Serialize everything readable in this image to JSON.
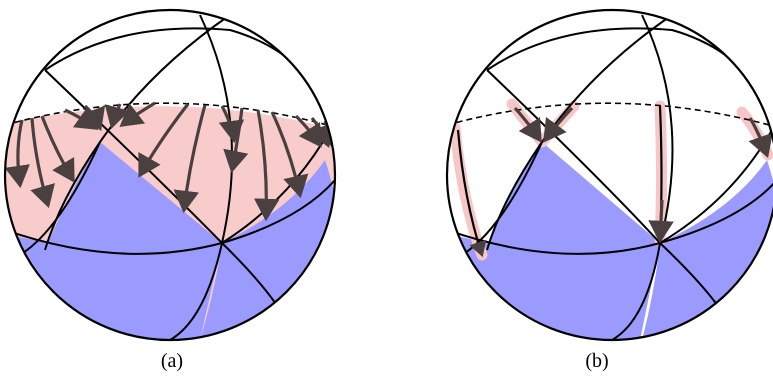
{
  "panels": [
    {
      "id": "a",
      "caption": "(a)"
    },
    {
      "id": "b",
      "caption": "(b)"
    }
  ],
  "colors": {
    "pink_region": "#f9cccc",
    "blue_region": "#9b9bff",
    "arrow": "#4a4040",
    "halo": "#f7c6c6",
    "outline": "#000000"
  }
}
